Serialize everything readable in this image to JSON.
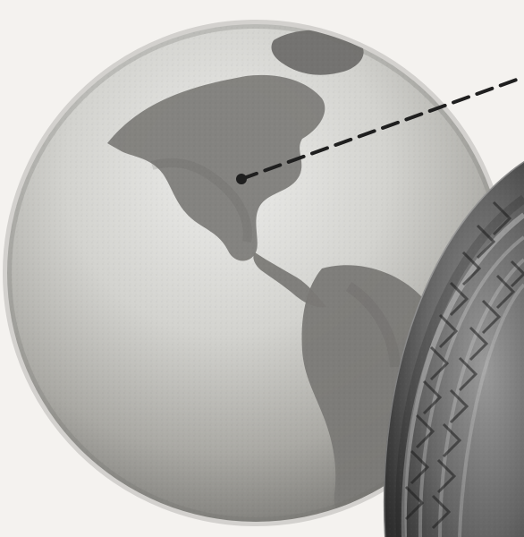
{
  "image": {
    "subjects": [
      "globe-icon",
      "tire-icon",
      "pointer-line"
    ],
    "colors": {
      "paper": "#f4f2ef",
      "globe_ocean_light": "#d7d7d4",
      "globe_ocean_mid": "#bdbdb8",
      "globe_ocean_dark": "#8a8a86",
      "landmass": "#7f7e7b",
      "landmass_dark": "#6b6a67",
      "dash_line": "#1f1f1f",
      "tire_base": "#6d6d6d",
      "tire_dark": "#2f2f2f",
      "tire_light": "#b9b9b9"
    }
  }
}
